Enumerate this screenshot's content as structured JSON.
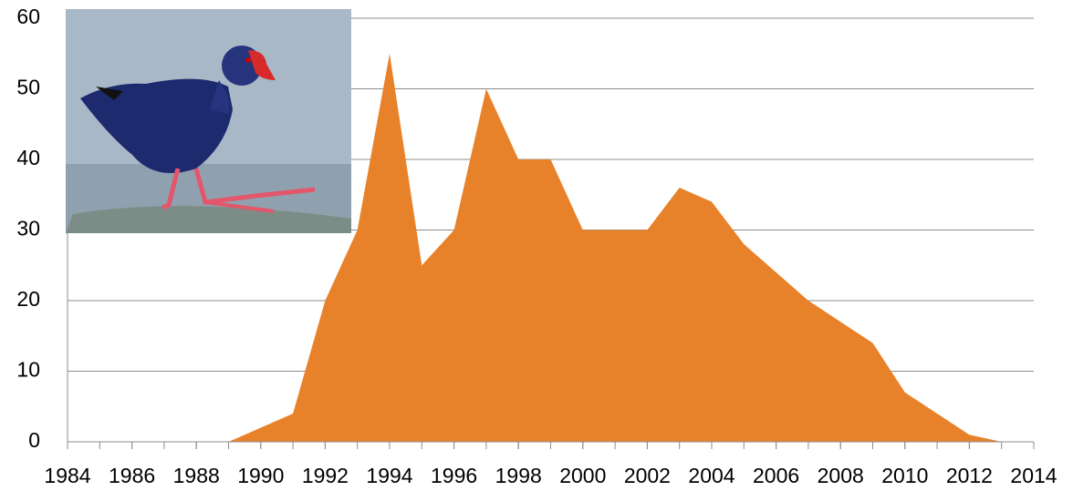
{
  "chart_data": {
    "type": "area",
    "color": "#e8822a",
    "x": [
      1984,
      1985,
      1986,
      1987,
      1988,
      1989,
      1990,
      1991,
      1992,
      1993,
      1994,
      1995,
      1996,
      1997,
      1998,
      1999,
      2000,
      2001,
      2002,
      2003,
      2004,
      2005,
      2006,
      2007,
      2008,
      2009,
      2010,
      2011,
      2012,
      2013
    ],
    "values": [
      0,
      0,
      0,
      0,
      0,
      0,
      2,
      4,
      20,
      30,
      55,
      25,
      30,
      50,
      40,
      40,
      30,
      30,
      30,
      36,
      34,
      28,
      24,
      20,
      17,
      14,
      7,
      4,
      1,
      0
    ],
    "xlim": [
      1984,
      2014
    ],
    "xticks": [
      1984,
      1986,
      1988,
      1990,
      1992,
      1994,
      1996,
      1998,
      2000,
      2002,
      2004,
      2006,
      2008,
      2010,
      2012,
      2014
    ],
    "ylim": [
      0,
      60
    ],
    "yticks": [
      0,
      10,
      20,
      30,
      40,
      50,
      60
    ],
    "grid": true
  }
}
